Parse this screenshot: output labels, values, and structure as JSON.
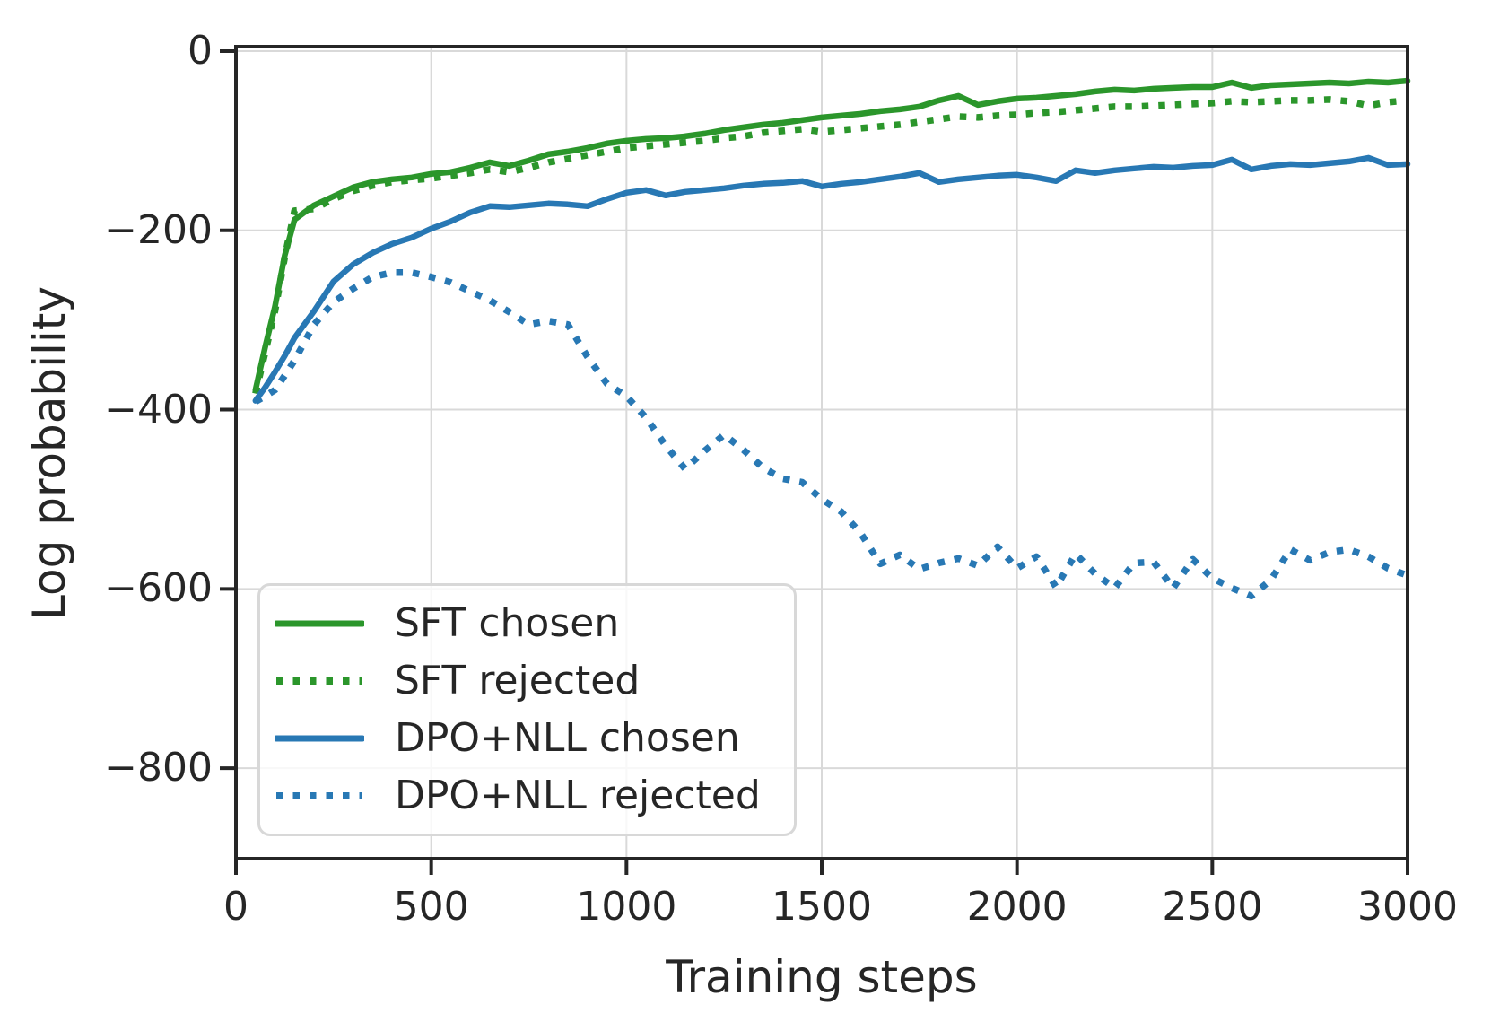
{
  "figure": {
    "background_color": "#ffffff"
  },
  "theme": {
    "text_color": "#262626",
    "spine_color": "#262626",
    "grid_color": "#d9d9d9",
    "minus_glyph": "−"
  },
  "chart_data": {
    "type": "line",
    "title": "",
    "xlabel": "Training steps",
    "ylabel": "Log probability",
    "xlim": [
      0,
      3000
    ],
    "ylim": [
      -901,
      5
    ],
    "xticks": [
      0,
      500,
      1000,
      1500,
      2000,
      2500,
      3000
    ],
    "yticks": [
      0,
      -200,
      -400,
      -600,
      -800
    ],
    "grid": true,
    "legend_position": "lower left",
    "x": [
      50,
      75,
      100,
      125,
      150,
      200,
      250,
      300,
      350,
      400,
      450,
      500,
      550,
      600,
      650,
      700,
      750,
      800,
      850,
      900,
      950,
      1000,
      1050,
      1100,
      1150,
      1200,
      1250,
      1300,
      1350,
      1400,
      1450,
      1500,
      1550,
      1600,
      1650,
      1700,
      1750,
      1800,
      1850,
      1900,
      1950,
      2000,
      2050,
      2100,
      2150,
      2200,
      2250,
      2300,
      2350,
      2400,
      2450,
      2500,
      2550,
      2600,
      2650,
      2700,
      2750,
      2800,
      2850,
      2900,
      2950,
      3000
    ],
    "series": [
      {
        "name": "SFT chosen",
        "color": "#2b962b",
        "style": "solid",
        "values": [
          -378,
          -330,
          -285,
          -228,
          -188,
          -172,
          -162,
          -152,
          -146,
          -143,
          -141,
          -137,
          -135,
          -130,
          -124,
          -128,
          -122,
          -115,
          -112,
          -108,
          -103,
          -100,
          -98,
          -97,
          -95,
          -92,
          -88,
          -85,
          -82,
          -80,
          -77,
          -74,
          -72,
          -70,
          -67,
          -65,
          -62,
          -55,
          -50,
          -60,
          -56,
          -53,
          -52,
          -50,
          -48,
          -45,
          -43,
          -44,
          -42,
          -41,
          -40,
          -40,
          -35,
          -41,
          -38,
          -37,
          -36,
          -35,
          -36,
          -34,
          -35,
          -33
        ]
      },
      {
        "name": "SFT rejected",
        "color": "#2b962b",
        "style": "dotted",
        "values": [
          -382,
          -336,
          -290,
          -230,
          -178,
          -176,
          -165,
          -156,
          -150,
          -146,
          -144,
          -142,
          -139,
          -136,
          -132,
          -135,
          -130,
          -124,
          -120,
          -116,
          -112,
          -108,
          -106,
          -104,
          -102,
          -100,
          -97,
          -95,
          -91,
          -89,
          -87,
          -90,
          -88,
          -86,
          -84,
          -82,
          -79,
          -76,
          -73,
          -74,
          -72,
          -71,
          -69,
          -68,
          -66,
          -64,
          -62,
          -62,
          -61,
          -60,
          -59,
          -58,
          -56,
          -57,
          -56,
          -55,
          -55,
          -54,
          -56,
          -61,
          -57,
          -55
        ]
      },
      {
        "name": "DPO+NLL chosen",
        "color": "#2878b4",
        "style": "solid",
        "values": [
          -390,
          -375,
          -358,
          -340,
          -320,
          -290,
          -257,
          -238,
          -225,
          -215,
          -208,
          -198,
          -190,
          -180,
          -173,
          -174,
          -172,
          -170,
          -171,
          -173,
          -165,
          -158,
          -155,
          -161,
          -157,
          -155,
          -153,
          -150,
          -148,
          -147,
          -145,
          -151,
          -148,
          -146,
          -143,
          -140,
          -136,
          -146,
          -143,
          -141,
          -139,
          -138,
          -141,
          -145,
          -133,
          -136,
          -133,
          -131,
          -129,
          -130,
          -128,
          -127,
          -121,
          -132,
          -128,
          -126,
          -127,
          -125,
          -123,
          -119,
          -127,
          -126
        ]
      },
      {
        "name": "DPO+NLL rejected",
        "color": "#2878b4",
        "style": "dotted",
        "values": [
          -391,
          -385,
          -378,
          -362,
          -345,
          -305,
          -280,
          -265,
          -252,
          -247,
          -247,
          -252,
          -258,
          -268,
          -278,
          -291,
          -305,
          -301,
          -305,
          -341,
          -371,
          -385,
          -409,
          -440,
          -466,
          -446,
          -428,
          -445,
          -465,
          -477,
          -481,
          -500,
          -514,
          -538,
          -572,
          -562,
          -578,
          -571,
          -566,
          -574,
          -553,
          -577,
          -564,
          -598,
          -561,
          -583,
          -599,
          -571,
          -570,
          -599,
          -567,
          -588,
          -599,
          -608,
          -590,
          -556,
          -568,
          -559,
          -556,
          -564,
          -577,
          -585
        ]
      }
    ]
  },
  "legend": {
    "entries": [
      "SFT chosen",
      "SFT rejected",
      "DPO+NLL chosen",
      "DPO+NLL rejected"
    ]
  }
}
